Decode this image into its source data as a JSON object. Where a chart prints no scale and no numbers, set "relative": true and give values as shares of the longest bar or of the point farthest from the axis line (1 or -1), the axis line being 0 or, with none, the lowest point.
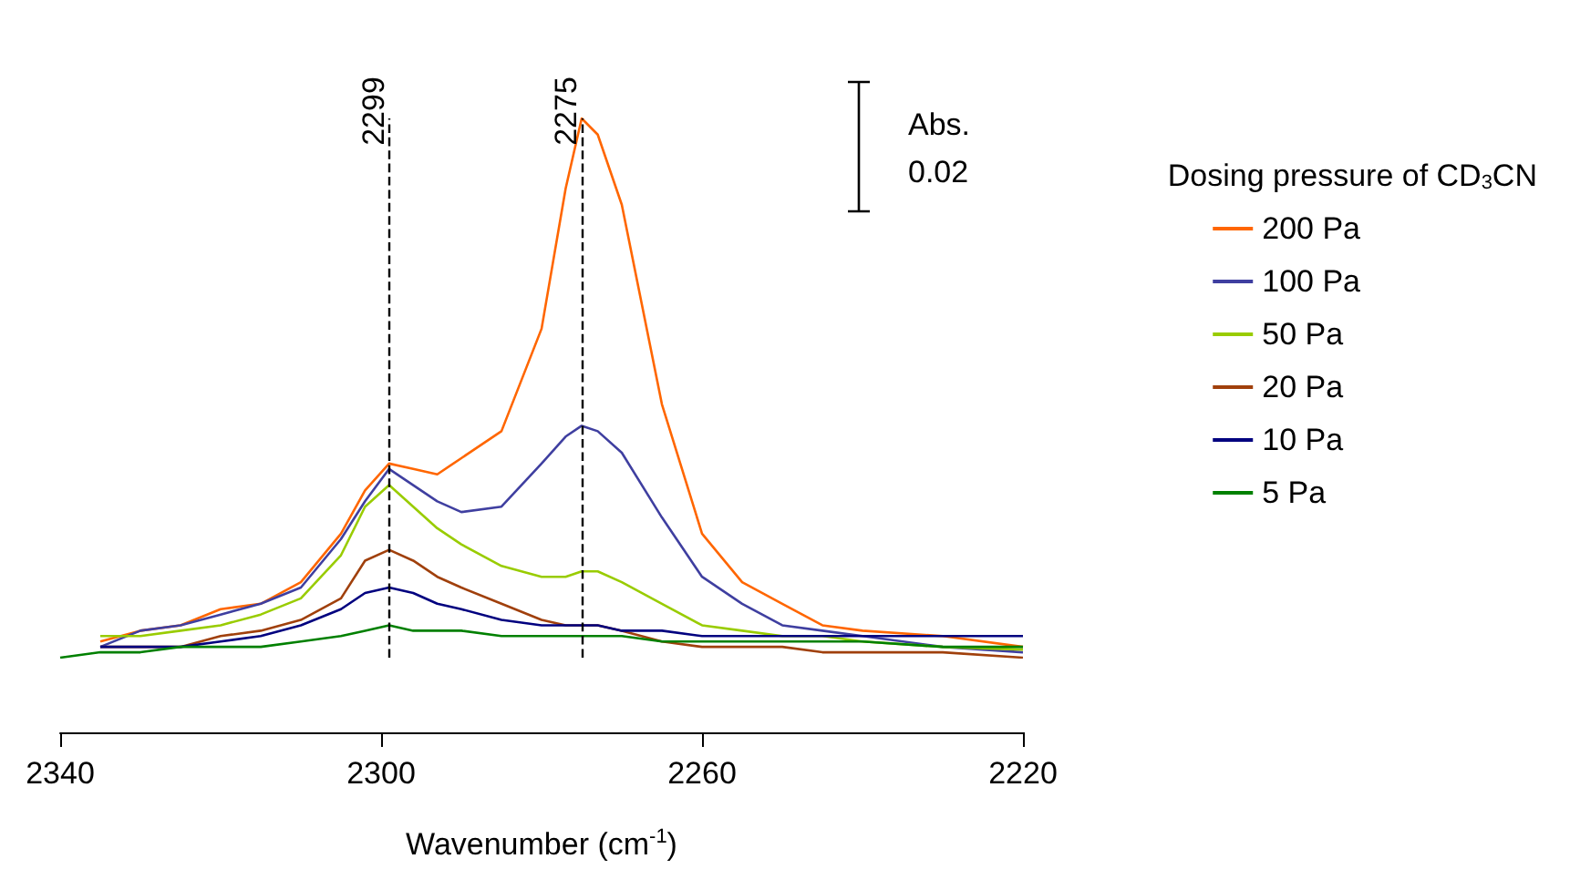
{
  "chart_data": {
    "type": "line",
    "relative": true,
    "xlabel": "Wavenumber (cm$^{-1}$)",
    "legend_title": "Dosing pressure of CD$_{3}$CN",
    "x": [
      2340,
      2335,
      2330,
      2325,
      2320,
      2315,
      2310,
      2305,
      2302,
      2299,
      2296,
      2293,
      2290,
      2285,
      2280,
      2277,
      2275,
      2273,
      2270,
      2265,
      2260,
      2255,
      2250,
      2245,
      2240,
      2230,
      2220
    ],
    "xlim": [
      2340,
      2220
    ],
    "xticks": [
      2340,
      2300,
      2260,
      2220
    ],
    "series": [
      {
        "name": "200 Pa",
        "color": "#ff6600",
        "values": [
          null,
          0.03,
          0.05,
          0.06,
          0.09,
          0.1,
          0.14,
          0.23,
          0.31,
          0.36,
          0.35,
          0.34,
          0.37,
          0.42,
          0.61,
          0.87,
          1,
          0.97,
          0.84,
          0.47,
          0.23,
          0.14,
          0.1,
          0.06,
          0.05,
          0.04,
          0.02
        ]
      },
      {
        "name": "100 Pa",
        "color": "#3f3fa0",
        "values": [
          null,
          0.02,
          0.05,
          0.06,
          0.08,
          0.1,
          0.13,
          0.22,
          0.29,
          0.35,
          0.32,
          0.29,
          0.27,
          0.28,
          0.36,
          0.41,
          0.43,
          0.42,
          0.38,
          0.26,
          0.15,
          0.1,
          0.06,
          0.05,
          0.04,
          0.02,
          0.01
        ]
      },
      {
        "name": "50 Pa",
        "color": "#99cc00",
        "values": [
          null,
          0.04,
          0.04,
          0.05,
          0.06,
          0.08,
          0.11,
          0.19,
          0.28,
          0.32,
          0.28,
          0.24,
          0.21,
          0.17,
          0.15,
          0.15,
          0.16,
          0.16,
          0.14,
          0.1,
          0.06,
          0.05,
          0.04,
          0.04,
          0.03,
          0.02,
          0.015
        ]
      },
      {
        "name": "20 Pa",
        "color": "#a0400c",
        "values": [
          null,
          0.02,
          0.02,
          0.02,
          0.04,
          0.05,
          0.07,
          0.11,
          0.18,
          0.2,
          0.18,
          0.15,
          0.13,
          0.1,
          0.07,
          0.06,
          0.06,
          0.06,
          0.05,
          0.03,
          0.02,
          0.02,
          0.02,
          0.01,
          0.01,
          0.01,
          0
        ]
      },
      {
        "name": "10 Pa",
        "color": "#00007f",
        "values": [
          null,
          0.02,
          0.02,
          0.02,
          0.03,
          0.04,
          0.06,
          0.09,
          0.12,
          0.13,
          0.12,
          0.1,
          0.09,
          0.07,
          0.06,
          0.06,
          0.06,
          0.06,
          0.05,
          0.05,
          0.04,
          0.04,
          0.04,
          0.04,
          0.04,
          0.04,
          0.04
        ]
      },
      {
        "name": "5 Pa",
        "color": "#008000",
        "values": [
          0,
          0.01,
          0.01,
          0.02,
          0.02,
          0.02,
          0.03,
          0.04,
          0.05,
          0.06,
          0.05,
          0.05,
          0.05,
          0.04,
          0.04,
          0.04,
          0.04,
          0.04,
          0.04,
          0.03,
          0.03,
          0.03,
          0.03,
          0.03,
          0.03,
          0.02,
          0.02
        ]
      }
    ],
    "ref_lines": [
      {
        "axis": "x",
        "value": 2299,
        "label": "2299",
        "color": "#000000",
        "line_style": "dashed"
      },
      {
        "axis": "x",
        "value": 2275,
        "label": "2275",
        "color": "#000000",
        "line_style": "dashed"
      }
    ],
    "annotations": [
      "Abs. 0.02"
    ],
    "legend": "right",
    "marker": "none",
    "line_style": "solid",
    "grid": false
  }
}
